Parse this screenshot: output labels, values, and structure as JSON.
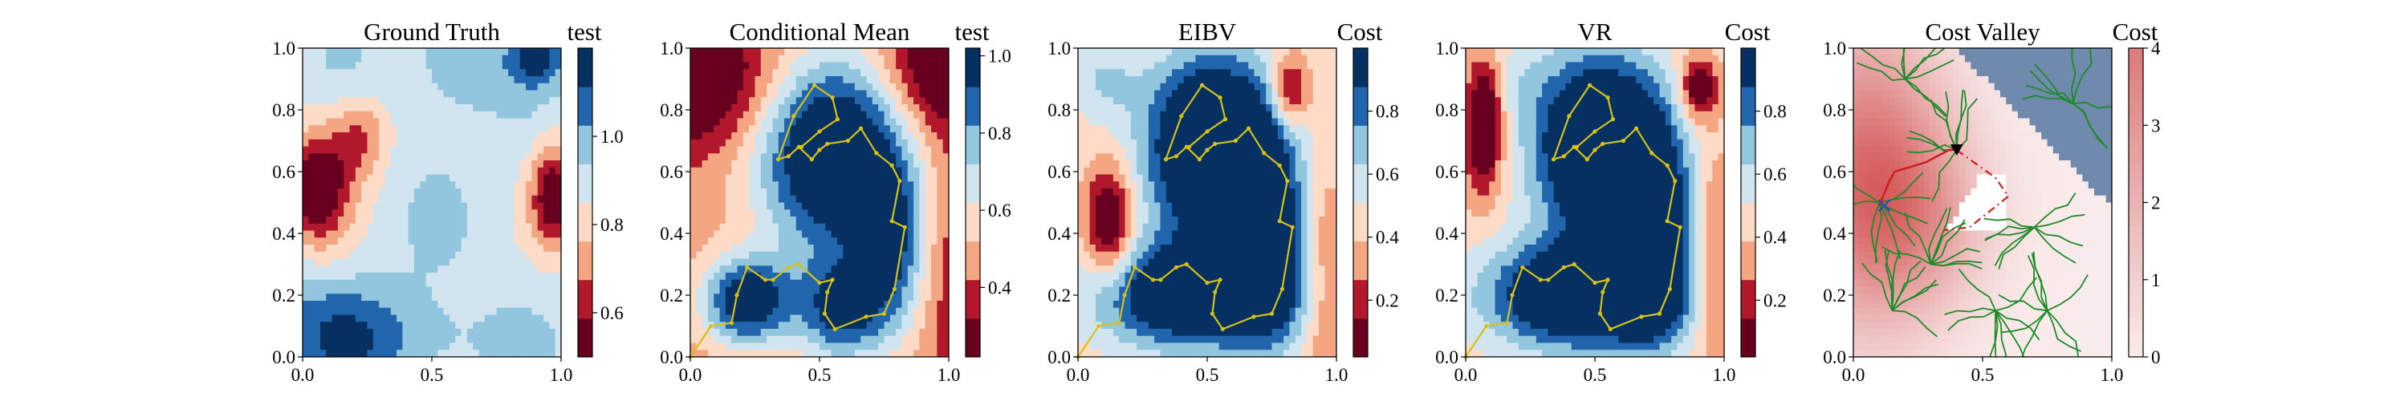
{
  "figure": {
    "panels": [
      {
        "title": "Ground Truth",
        "colorbar_title": "test",
        "colorbar_ticks": [
          0.6,
          0.8,
          1.0
        ],
        "colorbar_range": [
          0.5,
          1.2
        ],
        "colormap": "RdBu",
        "path": []
      },
      {
        "title": "Conditional Mean",
        "colorbar_title": "test",
        "colorbar_ticks": [
          0.4,
          0.6,
          0.8,
          1.0
        ],
        "colorbar_range": [
          0.22,
          1.02
        ],
        "colormap": "RdBu",
        "path": "survey"
      },
      {
        "title": "EIBV",
        "colorbar_title": "Cost",
        "colorbar_ticks": [
          0.2,
          0.4,
          0.6,
          0.8
        ],
        "colorbar_range": [
          0.02,
          1.0
        ],
        "colormap": "RdBu",
        "path": "survey"
      },
      {
        "title": "VR",
        "colorbar_title": "Cost",
        "colorbar_ticks": [
          0.2,
          0.4,
          0.6,
          0.8
        ],
        "colorbar_range": [
          0.02,
          1.0
        ],
        "colormap": "RdBu",
        "path": "survey"
      },
      {
        "title": "Cost Valley",
        "colorbar_title": "Cost",
        "colorbar_ticks": [
          0,
          1,
          2,
          3,
          4
        ],
        "colorbar_range": [
          0,
          4
        ],
        "colormap": "Reds-light",
        "path": "rrt"
      }
    ],
    "x_ticks": [
      "0.0",
      "0.5",
      "1.0"
    ],
    "y_ticks": [
      "0.0",
      "0.2",
      "0.4",
      "0.6",
      "0.8",
      "1.0"
    ],
    "colors": {
      "path_yellow": "#d4c21a",
      "tree_green": "#1f8a2a",
      "route_red": "#d11f1f",
      "obstacle_blue": "#6f8aad",
      "marker_blue": "#3040c0"
    }
  },
  "chart_data": {
    "type": "heatmap",
    "x": [
      0,
      1
    ],
    "y": [
      0,
      1
    ],
    "xlim": [
      0,
      1
    ],
    "ylim": [
      0,
      1
    ],
    "survey_path": [
      [
        0.0,
        0.0
      ],
      [
        0.08,
        0.1
      ],
      [
        0.16,
        0.11
      ],
      [
        0.18,
        0.2
      ],
      [
        0.22,
        0.29
      ],
      [
        0.29,
        0.25
      ],
      [
        0.32,
        0.25
      ],
      [
        0.38,
        0.29
      ],
      [
        0.42,
        0.3
      ],
      [
        0.5,
        0.24
      ],
      [
        0.55,
        0.25
      ],
      [
        0.53,
        0.21
      ],
      [
        0.52,
        0.14
      ],
      [
        0.56,
        0.09
      ],
      [
        0.68,
        0.13
      ],
      [
        0.75,
        0.14
      ],
      [
        0.79,
        0.22
      ],
      [
        0.83,
        0.42
      ],
      [
        0.78,
        0.44
      ],
      [
        0.81,
        0.57
      ],
      [
        0.78,
        0.62
      ],
      [
        0.72,
        0.66
      ],
      [
        0.66,
        0.74
      ],
      [
        0.61,
        0.7
      ],
      [
        0.53,
        0.69
      ],
      [
        0.5,
        0.67
      ],
      [
        0.47,
        0.64
      ],
      [
        0.42,
        0.68
      ],
      [
        0.38,
        0.65
      ],
      [
        0.34,
        0.64
      ],
      [
        0.4,
        0.78
      ],
      [
        0.48,
        0.88
      ],
      [
        0.55,
        0.84
      ],
      [
        0.57,
        0.77
      ],
      [
        0.5,
        0.73
      ],
      [
        0.43,
        0.68
      ]
    ],
    "rrt_route": [
      [
        0.1,
        0.49
      ],
      [
        0.12,
        0.53
      ],
      [
        0.14,
        0.57
      ],
      [
        0.16,
        0.6
      ],
      [
        0.28,
        0.63
      ],
      [
        0.37,
        0.67
      ],
      [
        0.4,
        0.67
      ]
    ],
    "rrt_planned": [
      [
        0.4,
        0.67
      ],
      [
        0.55,
        0.58
      ],
      [
        0.6,
        0.52
      ],
      [
        0.45,
        0.42
      ],
      [
        0.35,
        0.41
      ]
    ],
    "start_marker": [
      0.12,
      0.49
    ],
    "goal_marker": [
      0.4,
      0.67
    ]
  }
}
